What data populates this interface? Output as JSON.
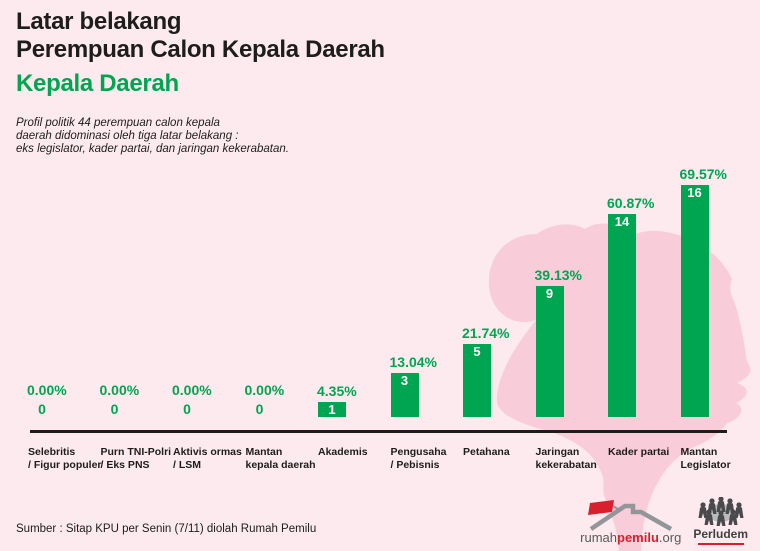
{
  "header": {
    "title_line1": "Latar belakang",
    "title_line2": "Perempuan Calon Kepala Daerah",
    "subtitle": "Kepala Daerah",
    "description_lines": [
      "Profil politik 44 perempuan calon kepala",
      "daerah didominasi oleh tiga latar belakang :",
      "eks legislator, kader partai, dan jaringan kekerabatan."
    ]
  },
  "chart_data": {
    "type": "bar",
    "title": "Kepala Daerah",
    "n_total": 44,
    "categories": [
      "Selebritis / Figur populer",
      "Purn TNI-Polri / Eks PNS",
      "Aktivis ormas / LSM",
      "Mantan kepala daerah",
      "Akademis",
      "Pengusaha / Pebisnis",
      "Petahana",
      "Jaringan kekerabatan",
      "Kader partai",
      "Mantan Legislator"
    ],
    "category_label_lines": [
      [
        "Selebritis",
        "/ Figur populer"
      ],
      [
        "Purn TNI-Polri",
        "/ Eks PNS"
      ],
      [
        "Aktivis ormas",
        "/ LSM"
      ],
      [
        "Mantan",
        "kepala daerah"
      ],
      [
        "Akademis"
      ],
      [
        "Pengusaha",
        "/ Pebisnis"
      ],
      [
        "Petahana"
      ],
      [
        "Jaringan",
        "kekerabatan"
      ],
      [
        "Kader partai"
      ],
      [
        "Mantan",
        "Legislator"
      ]
    ],
    "values": [
      0,
      0,
      0,
      0,
      1,
      3,
      5,
      9,
      14,
      16
    ],
    "percent_values": [
      0,
      0,
      0,
      0,
      4.35,
      13.04,
      21.74,
      39.13,
      60.87,
      69.57
    ],
    "percent_labels": [
      "0.00%",
      "0.00%",
      "0.00%",
      "0.00%",
      "4.35%",
      "13.04%",
      "21.74%",
      "39.13%",
      "60.87%",
      "69.57%"
    ],
    "ylim": [
      0,
      16
    ],
    "grid": false,
    "legend": "none",
    "bar_color": "#00a551"
  },
  "footer": {
    "source": "Sumber : Sitap KPU per Senin (7/11) diolah Rumah Pemilu",
    "logos": {
      "rumahpemilu": {
        "prefix": "rumah",
        "brand": "pemilu",
        "suffix": ".org"
      },
      "perludem": {
        "name": "Perludem"
      }
    }
  },
  "colors": {
    "bg": "#fceaef",
    "silhouette": "#f8cdd9",
    "green": "#00a551",
    "ink": "#1d1d1b",
    "red": "#d71f2e",
    "logo_gray": "#939598",
    "logo_text": "#58595b"
  }
}
